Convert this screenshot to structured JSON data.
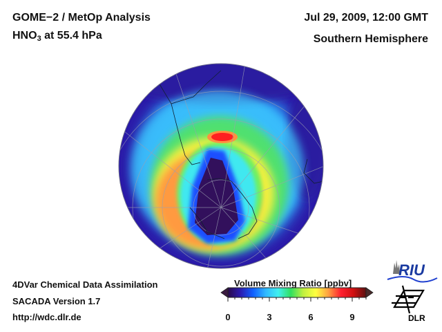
{
  "header": {
    "title_line1": "GOME−2 / MetOp Analysis",
    "title_species": "HNO",
    "title_species_sub": "3",
    "title_level": " at 55.4 hPa",
    "date": "Jul 29, 2009, 12:00 GMT",
    "region": "Southern Hemisphere"
  },
  "footer": {
    "line1": "4DVar Chemical Data Assimilation",
    "line2": "SACADA Version 1.7",
    "line3": "http://wdc.dlr.de"
  },
  "colorbar": {
    "title": "Volume Mixing Ratio [ppbv]",
    "ticks": [
      "0",
      "3",
      "6",
      "9"
    ],
    "range": [
      0,
      10
    ],
    "colors": [
      "#2a0a4a",
      "#2b1bb0",
      "#1060ff",
      "#30b8ff",
      "#40f0f0",
      "#30e060",
      "#c0f040",
      "#ffff40",
      "#ffa040",
      "#ff2030",
      "#d01010",
      "#5a1010"
    ]
  },
  "map": {
    "projection": "orthographic-south-pole",
    "ocean_low_color": "#2a1aa0",
    "grid_color": "#9aa0b0"
  },
  "logos": {
    "riu": "RIU",
    "dlr": "DLR"
  }
}
